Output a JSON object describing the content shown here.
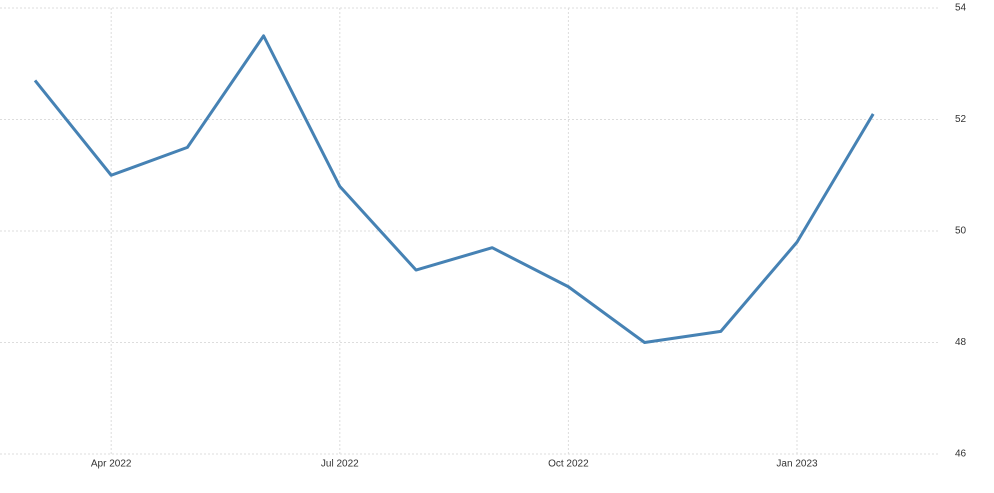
{
  "chart_data": {
    "type": "line",
    "x": [
      "2022-03",
      "2022-04",
      "2022-05",
      "2022-06",
      "2022-07",
      "2022-08",
      "2022-09",
      "2022-10",
      "2022-11",
      "2022-12",
      "2023-01",
      "2023-02"
    ],
    "series": [
      {
        "color": "#4682b4",
        "values": [
          52.7,
          51.0,
          51.5,
          53.5,
          50.8,
          49.3,
          49.7,
          49.0,
          48.0,
          48.2,
          49.8,
          52.1
        ]
      }
    ],
    "xticks": [
      {
        "value": "2022-04",
        "label": "Apr 2022"
      },
      {
        "value": "2022-07",
        "label": "Jul 2022"
      },
      {
        "value": "2022-10",
        "label": "Oct 2022"
      },
      {
        "value": "2023-01",
        "label": "Jan 2023"
      }
    ],
    "ylim": [
      46,
      54
    ],
    "yticks": [
      46,
      48,
      50,
      52,
      54
    ],
    "grid": true
  }
}
